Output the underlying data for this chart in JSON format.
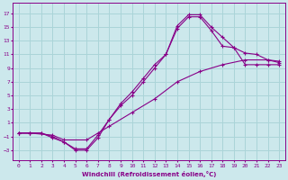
{
  "xlabel": "Windchill (Refroidissement éolien,°C)",
  "bg_color": "#cce8ec",
  "line_color": "#880088",
  "grid_color": "#aad4d8",
  "xlim": [
    -0.5,
    23.5
  ],
  "ylim": [
    -4.5,
    18.5
  ],
  "xticks": [
    0,
    1,
    2,
    3,
    4,
    5,
    6,
    7,
    8,
    9,
    10,
    11,
    12,
    13,
    14,
    15,
    16,
    17,
    18,
    19,
    20,
    21,
    22,
    23
  ],
  "yticks": [
    -3,
    -1,
    1,
    3,
    5,
    7,
    9,
    11,
    13,
    15,
    17
  ],
  "line1_x": [
    0,
    1,
    2,
    3,
    4,
    5,
    6,
    7,
    8,
    9,
    10,
    11,
    12,
    13,
    14,
    15,
    16,
    17,
    18,
    19,
    20,
    21,
    22,
    23
  ],
  "line1_y": [
    -0.5,
    -0.5,
    -0.5,
    -1.2,
    -1.8,
    -3.0,
    -3.0,
    -1.2,
    1.5,
    3.8,
    5.5,
    7.5,
    9.5,
    11.0,
    15.2,
    16.8,
    16.8,
    15.0,
    13.5,
    12.0,
    11.2,
    11.0,
    10.2,
    10.0
  ],
  "line2_x": [
    0,
    1,
    2,
    3,
    4,
    5,
    6,
    7,
    8,
    9,
    10,
    11,
    12,
    13,
    14,
    15,
    16,
    17,
    18,
    19,
    20,
    21,
    22,
    23
  ],
  "line2_y": [
    -0.5,
    -0.5,
    -0.5,
    -1.0,
    -1.8,
    -2.8,
    -2.8,
    -0.8,
    1.5,
    3.5,
    5.0,
    7.0,
    9.0,
    11.0,
    14.8,
    16.5,
    16.5,
    14.5,
    12.2,
    12.0,
    9.5,
    9.5,
    9.5,
    9.5
  ],
  "line3_x": [
    0,
    1,
    3,
    4,
    6,
    7,
    8,
    10,
    12,
    14,
    16,
    18,
    20,
    22,
    23
  ],
  "line3_y": [
    -0.5,
    -0.5,
    -0.8,
    -1.5,
    -1.5,
    -0.5,
    0.5,
    2.5,
    4.5,
    7.0,
    8.5,
    9.5,
    10.2,
    10.2,
    9.8
  ]
}
